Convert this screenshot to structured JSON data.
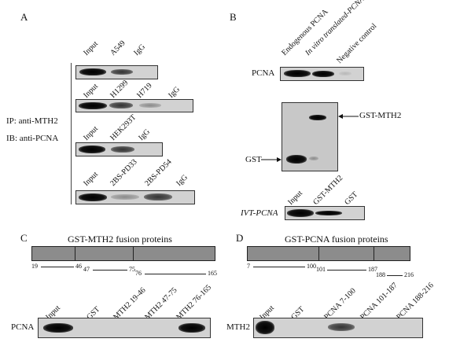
{
  "panel_a": {
    "letter": "A",
    "ip_label": "IP: anti-MTH2",
    "ib_label": "IB: anti-PCNA",
    "row1": [
      "Input",
      "A549",
      "IgG"
    ],
    "row2": [
      "Input",
      "H1299",
      "H719",
      "IgG"
    ],
    "row3": [
      "Input",
      "HEK293T",
      "IgG"
    ],
    "row4": [
      "Input",
      "2BS-PD33",
      "2BS-PD54",
      "IgG"
    ]
  },
  "panel_b": {
    "letter": "B",
    "top_lanes": [
      "Endogenous PCNA",
      "In vitro translated-PCNA",
      "Negative control"
    ],
    "pcna_label": "PCNA",
    "gst_mth2_label": "GST-MTH2",
    "gst_label": "GST",
    "bottom_lanes": [
      "Input",
      "GST-MTH2",
      "GST"
    ],
    "ivt_label": "IVT-PCNA"
  },
  "panel_c": {
    "letter": "C",
    "title": "GST-MTH2 fusion proteins",
    "ranges": [
      {
        "start": "19",
        "end": "46"
      },
      {
        "start": "47",
        "end": "75"
      },
      {
        "start": "76",
        "end": "165"
      }
    ],
    "lanes": [
      "Input",
      "GST",
      "MTH2 19-46",
      "MTH2 47-75",
      "MTH2 76-165"
    ],
    "blot_label": "PCNA"
  },
  "panel_d": {
    "letter": "D",
    "title": "GST-PCNA fusion proteins",
    "ranges": [
      {
        "start": "7",
        "end": "100"
      },
      {
        "start": "101",
        "end": "187"
      },
      {
        "start": "188",
        "end": "216"
      }
    ],
    "lanes": [
      "Input",
      "GST",
      "PCNA 7-100",
      "PCNA 101-187",
      "PCNA 188-216"
    ],
    "blot_label": "MTH2"
  }
}
